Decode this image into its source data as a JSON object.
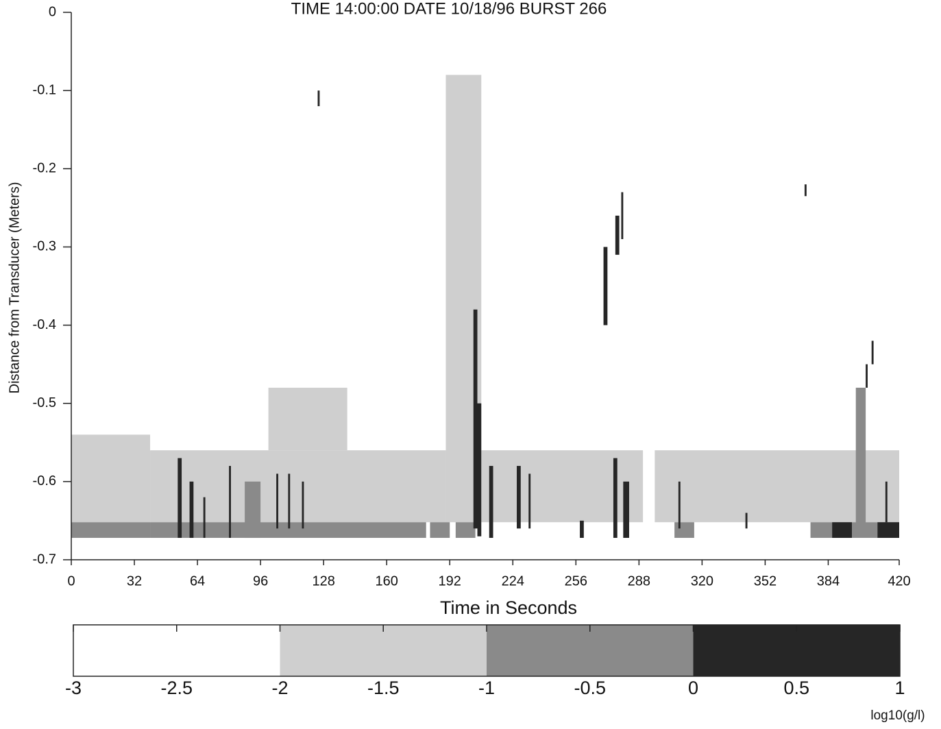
{
  "chart_data": {
    "type": "heatmap",
    "title": "TIME 14:00:00 DATE 10/18/96   BURST 266",
    "x_label": "Time in Seconds",
    "y_label": "Distance from Transducer (Meters)",
    "xlim": [
      0,
      420
    ],
    "xticks": [
      0,
      32,
      64,
      96,
      128,
      160,
      192,
      224,
      256,
      288,
      320,
      352,
      384,
      420
    ],
    "ylim": [
      -0.7,
      0
    ],
    "yticks": [
      0,
      -0.1,
      -0.2,
      -0.3,
      -0.4,
      -0.5,
      -0.6,
      -0.7
    ],
    "colorbar": {
      "label": "log10(g/l)",
      "lim": [
        -3,
        1
      ],
      "ticks": [
        -3,
        -2.5,
        -2,
        -1.5,
        -1,
        -0.5,
        0,
        0.5,
        1
      ],
      "bands": [
        {
          "from": -3,
          "to": -2,
          "color": "#ffffff"
        },
        {
          "from": -2,
          "to": -1,
          "color": "#cfcfcf"
        },
        {
          "from": -1,
          "to": 0,
          "color": "#8a8a8a"
        },
        {
          "from": 0,
          "to": 1,
          "color": "#262626"
        }
      ]
    },
    "cells": [
      {
        "x": [
          0,
          40
        ],
        "y": [
          -0.54,
          -0.652
        ],
        "value": -1.9
      },
      {
        "x": [
          40,
          190
        ],
        "y": [
          -0.56,
          -0.652
        ],
        "value": -1.9
      },
      {
        "x": [
          100,
          140
        ],
        "y": [
          -0.48,
          -0.56
        ],
        "value": -1.95
      },
      {
        "x": [
          190,
          208
        ],
        "y": [
          -0.08,
          -0.652
        ],
        "value": -1.9
      },
      {
        "x": [
          208,
          290
        ],
        "y": [
          -0.56,
          -0.652
        ],
        "value": -1.95
      },
      {
        "x": [
          296,
          420
        ],
        "y": [
          -0.56,
          -0.652
        ],
        "value": -1.95
      },
      {
        "x": [
          0,
          40
        ],
        "y": [
          -0.652,
          -0.672
        ],
        "value": -0.6
      },
      {
        "x": [
          40,
          180
        ],
        "y": [
          -0.652,
          -0.672
        ],
        "value": -0.6
      },
      {
        "x": [
          182,
          192
        ],
        "y": [
          -0.652,
          -0.672
        ],
        "value": -0.6
      },
      {
        "x": [
          195,
          205
        ],
        "y": [
          -0.652,
          -0.672
        ],
        "value": -0.6
      },
      {
        "x": [
          375,
          420
        ],
        "y": [
          -0.652,
          -0.672
        ],
        "value": -0.6
      },
      {
        "x": [
          125,
          126
        ],
        "y": [
          -0.1,
          -0.12
        ],
        "value": 0.5
      },
      {
        "x": [
          270,
          272
        ],
        "y": [
          -0.3,
          -0.4
        ],
        "value": 0.3
      },
      {
        "x": [
          276,
          278
        ],
        "y": [
          -0.26,
          -0.31
        ],
        "value": 0.5
      },
      {
        "x": [
          279,
          280
        ],
        "y": [
          -0.23,
          -0.29
        ],
        "value": 0.5
      },
      {
        "x": [
          372,
          373
        ],
        "y": [
          -0.22,
          -0.235
        ],
        "value": 0.5
      },
      {
        "x": [
          406,
          407
        ],
        "y": [
          -0.42,
          -0.45
        ],
        "value": 0.5
      },
      {
        "x": [
          403,
          404
        ],
        "y": [
          -0.45,
          -0.48
        ],
        "value": 0.5
      },
      {
        "x": [
          398,
          403
        ],
        "y": [
          -0.48,
          -0.66
        ],
        "value": -0.4
      },
      {
        "x": [
          204,
          206
        ],
        "y": [
          -0.38,
          -0.66
        ],
        "value": 0.3
      },
      {
        "x": [
          206,
          208
        ],
        "y": [
          -0.5,
          -0.67
        ],
        "value": 0.4
      },
      {
        "x": [
          88,
          96
        ],
        "y": [
          -0.6,
          -0.672
        ],
        "value": -0.3
      },
      {
        "x": [
          54,
          56
        ],
        "y": [
          -0.57,
          -0.672
        ],
        "value": 0.5
      },
      {
        "x": [
          60,
          62
        ],
        "y": [
          -0.6,
          -0.672
        ],
        "value": 0.5
      },
      {
        "x": [
          67,
          68
        ],
        "y": [
          -0.62,
          -0.672
        ],
        "value": 0.5
      },
      {
        "x": [
          80,
          81
        ],
        "y": [
          -0.58,
          -0.672
        ],
        "value": 0.5
      },
      {
        "x": [
          104,
          105
        ],
        "y": [
          -0.59,
          -0.66
        ],
        "value": 0.5
      },
      {
        "x": [
          110,
          111
        ],
        "y": [
          -0.59,
          -0.66
        ],
        "value": 0.5
      },
      {
        "x": [
          117,
          118
        ],
        "y": [
          -0.6,
          -0.66
        ],
        "value": 0.5
      },
      {
        "x": [
          212,
          214
        ],
        "y": [
          -0.58,
          -0.672
        ],
        "value": 0.4
      },
      {
        "x": [
          226,
          228
        ],
        "y": [
          -0.58,
          -0.66
        ],
        "value": 0.5
      },
      {
        "x": [
          232,
          233
        ],
        "y": [
          -0.59,
          -0.66
        ],
        "value": 0.5
      },
      {
        "x": [
          258,
          260
        ],
        "y": [
          -0.65,
          -0.672
        ],
        "value": 0.5
      },
      {
        "x": [
          275,
          277
        ],
        "y": [
          -0.57,
          -0.672
        ],
        "value": 0.5
      },
      {
        "x": [
          280,
          283
        ],
        "y": [
          -0.6,
          -0.672
        ],
        "value": 0.4
      },
      {
        "x": [
          306,
          316
        ],
        "y": [
          -0.652,
          -0.672
        ],
        "value": -0.4
      },
      {
        "x": [
          308,
          309
        ],
        "y": [
          -0.6,
          -0.66
        ],
        "value": 0.5
      },
      {
        "x": [
          342,
          343
        ],
        "y": [
          -0.64,
          -0.66
        ],
        "value": 0.5
      },
      {
        "x": [
          386,
          396
        ],
        "y": [
          -0.652,
          -0.672
        ],
        "value": 0.4
      },
      {
        "x": [
          409,
          420
        ],
        "y": [
          -0.652,
          -0.672
        ],
        "value": 0.4
      },
      {
        "x": [
          413,
          414
        ],
        "y": [
          -0.6,
          -0.652
        ],
        "value": 0.5
      }
    ]
  }
}
